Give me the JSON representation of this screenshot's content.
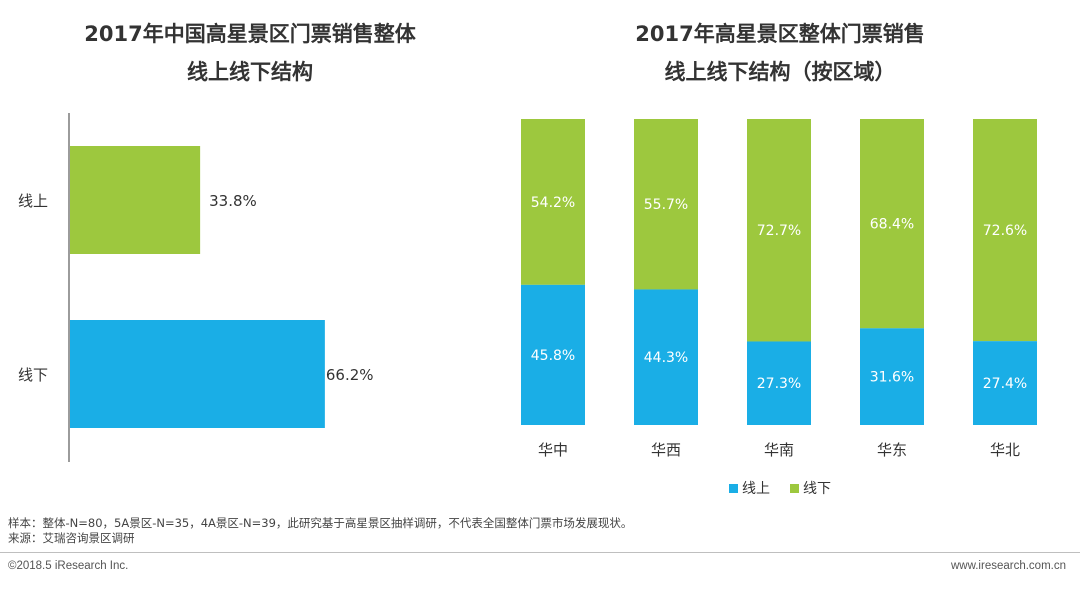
{
  "colors": {
    "online": "#1aaee6",
    "offline": "#9dc83e",
    "axis": "#595959",
    "text": "#333333"
  },
  "left_chart": {
    "title_line1": "2017年中国高星景区门票销售整体",
    "title_line2": "线上线下结构"
  },
  "right_chart": {
    "title_line1": "2017年高星景区整体门票销售",
    "title_line2": "线上线下结构（按区域）"
  },
  "chart_data": [
    {
      "type": "bar",
      "orientation": "horizontal",
      "title": "2017年中国高星景区门票销售整体线上线下结构",
      "categories": [
        "线上",
        "线下"
      ],
      "values": [
        33.8,
        66.2
      ],
      "value_labels": [
        "33.8%",
        "66.2%"
      ],
      "unit": "%",
      "xlim": [
        0,
        100
      ]
    },
    {
      "type": "bar",
      "stacked": true,
      "percent_stacked": true,
      "title": "2017年高星景区整体门票销售线上线下结构（按区域）",
      "categories": [
        "华中",
        "华西",
        "华南",
        "华东",
        "华北"
      ],
      "series": [
        {
          "name": "线上",
          "values": [
            45.8,
            44.3,
            27.3,
            31.6,
            27.4
          ],
          "labels": [
            "45.8%",
            "44.3%",
            "27.3%",
            "31.6%",
            "27.4%"
          ]
        },
        {
          "name": "线下",
          "values": [
            54.2,
            55.7,
            72.7,
            68.4,
            72.6
          ],
          "labels": [
            "54.2%",
            "55.7%",
            "72.7%",
            "68.4%",
            "72.6%"
          ]
        }
      ],
      "legend": [
        "线上",
        "线下"
      ],
      "legend_position": "bottom",
      "ylim": [
        0,
        100
      ]
    }
  ],
  "footer": {
    "sample_note": "样本：整体-N=80，5A景区-N=35，4A景区-N=39，此研究基于高星景区抽样调研，不代表全国整体门票市场发展现状。",
    "source_note": "来源：艾瑞咨询景区调研",
    "copyright": "©2018.5 iResearch Inc.",
    "website": "www.iresearch.com.cn"
  }
}
